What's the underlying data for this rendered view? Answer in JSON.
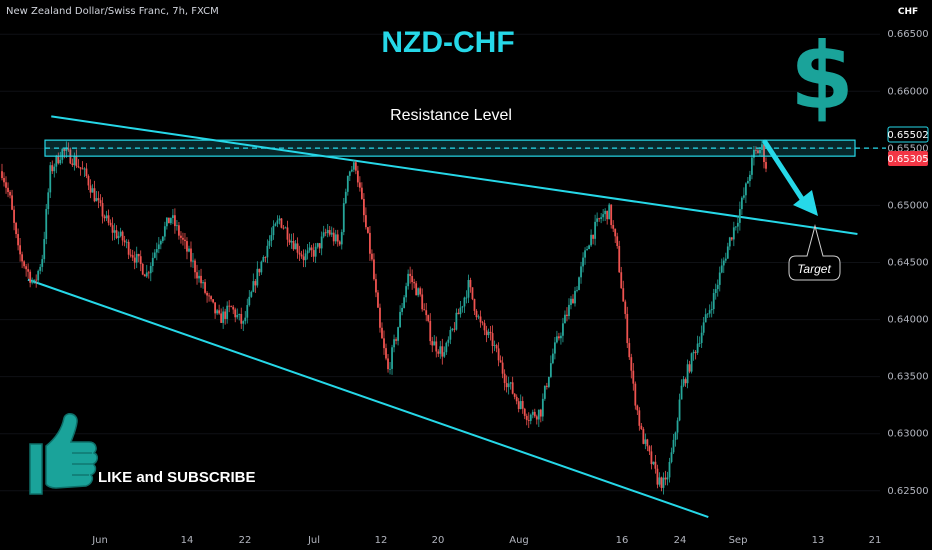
{
  "header": {
    "symbol_title": "New Zealand Dollar/Swiss Franc, 7h, FXCM",
    "currency": "CHF"
  },
  "overlay": {
    "headline": "NZD-CHF",
    "dollar_sign": "$",
    "resistance_label": "Resistance Level",
    "target_label": "Target",
    "like_text": "LIKE and SUBSCRIBE",
    "like_icon": "thumbs-up-icon"
  },
  "price_badges": {
    "resistance": "0.65502",
    "last": "0.65305"
  },
  "colors": {
    "background": "#000000",
    "accent": "#26d8e8",
    "up": "#26a69a",
    "down": "#ef5350",
    "dollar": "#1aa39a",
    "last_badge": "#f23645"
  },
  "chart_data": {
    "type": "candlestick",
    "ylim": [
      0.622,
      0.668
    ],
    "y_ticks": [
      "0.66500",
      "0.66000",
      "0.65500",
      "0.65000",
      "0.64500",
      "0.64000",
      "0.63500",
      "0.63000",
      "0.62500"
    ],
    "x_ticks": [
      "Jun",
      "14",
      "22",
      "Jul",
      "12",
      "20",
      "Aug",
      "16",
      "24",
      "Sep",
      "13",
      "21"
    ],
    "resistance_level": 0.65502,
    "last_price": 0.65305,
    "price_path": [
      [
        0,
        0.653
      ],
      [
        4,
        0.6505
      ],
      [
        8,
        0.646
      ],
      [
        12,
        0.6445
      ],
      [
        16,
        0.643
      ],
      [
        20,
        0.6455
      ],
      [
        24,
        0.653
      ],
      [
        30,
        0.6548
      ],
      [
        36,
        0.654
      ],
      [
        42,
        0.6525
      ],
      [
        48,
        0.65
      ],
      [
        54,
        0.648
      ],
      [
        60,
        0.647
      ],
      [
        66,
        0.6455
      ],
      [
        72,
        0.644
      ],
      [
        78,
        0.647
      ],
      [
        84,
        0.649
      ],
      [
        90,
        0.6468
      ],
      [
        96,
        0.6445
      ],
      [
        102,
        0.642
      ],
      [
        108,
        0.64
      ],
      [
        114,
        0.641
      ],
      [
        120,
        0.6395
      ],
      [
        126,
        0.6435
      ],
      [
        132,
        0.6465
      ],
      [
        138,
        0.6488
      ],
      [
        144,
        0.647
      ],
      [
        150,
        0.6455
      ],
      [
        156,
        0.646
      ],
      [
        162,
        0.6478
      ],
      [
        168,
        0.6465
      ],
      [
        172,
        0.653
      ],
      [
        176,
        0.6535
      ],
      [
        180,
        0.649
      ],
      [
        184,
        0.645
      ],
      [
        188,
        0.639
      ],
      [
        192,
        0.6355
      ],
      [
        196,
        0.6385
      ],
      [
        202,
        0.644
      ],
      [
        208,
        0.642
      ],
      [
        214,
        0.638
      ],
      [
        220,
        0.637
      ],
      [
        226,
        0.64
      ],
      [
        232,
        0.643
      ],
      [
        238,
        0.6395
      ],
      [
        244,
        0.638
      ],
      [
        250,
        0.635
      ],
      [
        256,
        0.633
      ],
      [
        262,
        0.6315
      ],
      [
        268,
        0.632
      ],
      [
        274,
        0.637
      ],
      [
        280,
        0.64
      ],
      [
        286,
        0.643
      ],
      [
        292,
        0.647
      ],
      [
        298,
        0.649
      ],
      [
        302,
        0.6495
      ],
      [
        306,
        0.646
      ],
      [
        310,
        0.64
      ],
      [
        314,
        0.634
      ],
      [
        318,
        0.63
      ],
      [
        322,
        0.628
      ],
      [
        326,
        0.626
      ],
      [
        330,
        0.6255
      ],
      [
        334,
        0.629
      ],
      [
        338,
        0.634
      ],
      [
        342,
        0.636
      ],
      [
        346,
        0.638
      ],
      [
        350,
        0.64
      ],
      [
        354,
        0.642
      ],
      [
        358,
        0.6445
      ],
      [
        362,
        0.647
      ],
      [
        366,
        0.649
      ],
      [
        370,
        0.6515
      ],
      [
        374,
        0.6545
      ],
      [
        378,
        0.655
      ],
      [
        380,
        0.6535
      ]
    ],
    "trendlines": [
      {
        "from": [
          0.055,
          0.6578
        ],
        "to": [
          0.92,
          0.6475
        ]
      },
      {
        "from": [
          0.03,
          0.6435
        ],
        "to": [
          0.76,
          0.6227
        ]
      }
    ]
  }
}
